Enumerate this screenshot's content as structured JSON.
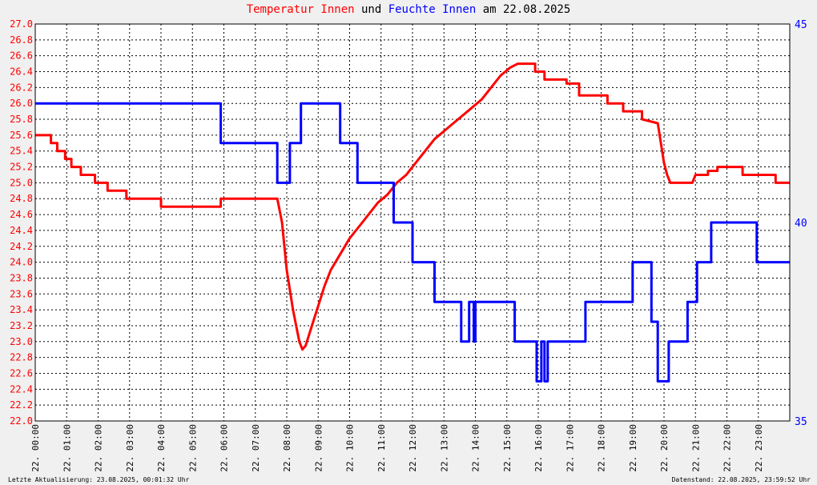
{
  "title": {
    "part1": "Temperatur Innen",
    "part2": " und ",
    "part3": "Feuchte Innen",
    "part4": " am 22.08.2025",
    "color1": "#ff0000",
    "color3": "#0000ff"
  },
  "footer": {
    "left": "Letzte Aktualisierung: 23.08.2025, 00:01:32 Uhr",
    "right": "Datenstand: 22.08.2025, 23:59:52 Uhr"
  },
  "chart_data": {
    "type": "line",
    "x_ticks": [
      "22. 00:00",
      "22. 01:00",
      "22. 02:00",
      "22. 03:00",
      "22. 04:00",
      "22. 05:00",
      "22. 06:00",
      "22. 07:00",
      "22. 08:00",
      "22. 09:00",
      "22. 10:00",
      "22. 11:00",
      "22. 12:00",
      "22. 13:00",
      "22. 14:00",
      "22. 15:00",
      "22. 16:00",
      "22. 17:00",
      "22. 18:00",
      "22. 19:00",
      "22. 20:00",
      "22. 21:00",
      "22. 22:00",
      "22. 23:00"
    ],
    "xlim": [
      0,
      24
    ],
    "y_left": {
      "ylim": [
        22.0,
        27.0
      ],
      "step": 0.2,
      "color": "#ff0000"
    },
    "y_right": {
      "ylim": [
        35,
        45
      ],
      "ticks": [
        35,
        40,
        45
      ],
      "color": "#0000ff"
    },
    "grid": true,
    "series": [
      {
        "name": "Temperatur Innen",
        "axis": "left",
        "color": "#ff0000",
        "x": [
          0,
          0.3,
          0.3,
          0.5,
          0.5,
          0.7,
          0.7,
          0.95,
          0.95,
          1.15,
          1.15,
          1.45,
          1.45,
          1.9,
          1.9,
          2.3,
          2.3,
          2.9,
          2.9,
          3.7,
          3.7,
          4.0,
          4.0,
          4.6,
          4.6,
          5.0,
          5.0,
          5.9,
          5.9,
          6.2,
          6.2,
          7.4,
          7.4,
          7.7,
          7.85,
          8.0,
          8.2,
          8.4,
          8.5,
          8.6,
          8.8,
          9.0,
          9.2,
          9.4,
          9.7,
          10.0,
          10.3,
          10.6,
          10.9,
          11.2,
          11.5,
          11.8,
          12.1,
          12.4,
          12.7,
          13.0,
          13.3,
          13.6,
          13.9,
          14.2,
          14.5,
          14.8,
          15.1,
          15.35,
          15.35,
          15.9,
          15.9,
          16.2,
          16.2,
          16.9,
          16.9,
          17.3,
          17.3,
          18.2,
          18.2,
          18.7,
          18.7,
          19.3,
          19.3,
          19.8,
          19.9,
          20.0,
          20.1,
          20.2,
          20.2,
          20.9,
          20.9,
          21.0,
          21.0,
          21.4,
          21.4,
          21.7,
          21.7,
          22.5,
          22.5,
          23.3,
          23.3,
          23.55,
          23.55,
          24.0
        ],
        "y": [
          25.6,
          25.6,
          25.6,
          25.6,
          25.5,
          25.5,
          25.4,
          25.4,
          25.3,
          25.3,
          25.2,
          25.2,
          25.1,
          25.1,
          25.0,
          25.0,
          24.9,
          24.9,
          24.8,
          24.8,
          24.8,
          24.8,
          24.7,
          24.7,
          24.7,
          24.7,
          24.7,
          24.7,
          24.8,
          24.8,
          24.8,
          24.8,
          24.8,
          24.8,
          24.5,
          23.9,
          23.4,
          23.0,
          22.9,
          22.95,
          23.2,
          23.45,
          23.7,
          23.9,
          24.1,
          24.3,
          24.45,
          24.6,
          24.75,
          24.85,
          25.0,
          25.1,
          25.25,
          25.4,
          25.55,
          25.65,
          25.75,
          25.85,
          25.95,
          26.05,
          26.2,
          26.35,
          26.45,
          26.5,
          26.5,
          26.5,
          26.4,
          26.4,
          26.3,
          26.3,
          26.25,
          26.25,
          26.1,
          26.1,
          26.0,
          26.0,
          25.9,
          25.9,
          25.8,
          25.75,
          25.5,
          25.25,
          25.1,
          25.0,
          25.0,
          25.0,
          25.0,
          25.1,
          25.1,
          25.1,
          25.15,
          25.15,
          25.2,
          25.2,
          25.1,
          25.1,
          25.1,
          25.1,
          25.0,
          25.0
        ]
      },
      {
        "name": "Feuchte Innen",
        "axis": "right",
        "color": "#0000ff",
        "x": [
          0,
          5.9,
          5.9,
          7.7,
          7.7,
          8.1,
          8.1,
          8.45,
          8.45,
          9.7,
          9.7,
          10.25,
          10.25,
          11.4,
          11.4,
          12.0,
          12.0,
          12.7,
          12.7,
          13.55,
          13.55,
          13.8,
          13.8,
          13.95,
          13.95,
          14.0,
          14.0,
          14.1,
          14.1,
          15.25,
          15.25,
          15.95,
          15.95,
          16.1,
          16.1,
          16.2,
          16.2,
          16.3,
          16.3,
          17.5,
          17.5,
          19.0,
          19.0,
          19.6,
          19.6,
          19.8,
          19.8,
          20.15,
          20.15,
          20.75,
          20.75,
          21.05,
          21.05,
          21.5,
          21.5,
          22.95,
          22.95,
          24.0
        ],
        "y": [
          43,
          43,
          42,
          42,
          41,
          41,
          42,
          42,
          43,
          43,
          42,
          42,
          41,
          41,
          40,
          40,
          39,
          39,
          38,
          38,
          37,
          37,
          38,
          38,
          37,
          37,
          38,
          38,
          38,
          38,
          37,
          37,
          36,
          36,
          37,
          37,
          36,
          36,
          37,
          37,
          38,
          38,
          39,
          39,
          37.5,
          37.5,
          36,
          36,
          37,
          37,
          38,
          38,
          39,
          39,
          40,
          40,
          39,
          39
        ]
      }
    ]
  }
}
